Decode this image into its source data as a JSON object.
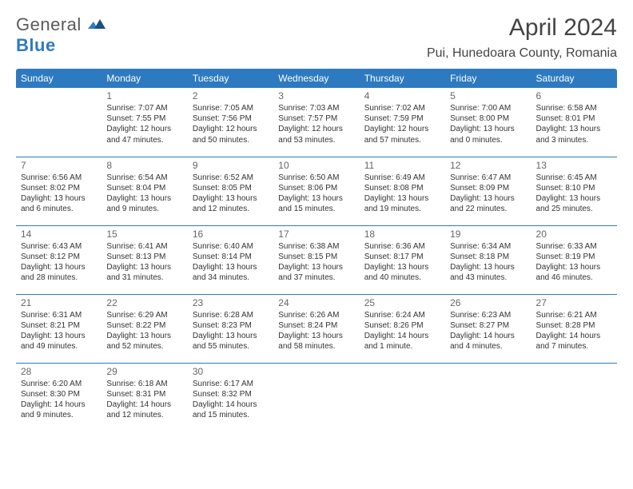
{
  "logo": {
    "general": "General",
    "blue": "Blue"
  },
  "header": {
    "month_title": "April 2024",
    "location": "Pui, Hunedoara County, Romania"
  },
  "colors": {
    "header_bg": "#2e7ac0",
    "header_text": "#ffffff",
    "divider": "#2e7ac0",
    "daynum": "#666666",
    "body_text": "#333333",
    "logo_gray": "#5a5a5a",
    "logo_blue": "#2e7ac0",
    "background": "#ffffff"
  },
  "typography": {
    "month_title_fontsize": 30,
    "location_fontsize": 16,
    "weekday_fontsize": 12,
    "daynum_fontsize": 12,
    "info_fontsize": 10
  },
  "weekdays": [
    "Sunday",
    "Monday",
    "Tuesday",
    "Wednesday",
    "Thursday",
    "Friday",
    "Saturday"
  ],
  "weeks": [
    [
      null,
      {
        "day": "1",
        "sunrise": "Sunrise: 7:07 AM",
        "sunset": "Sunset: 7:55 PM",
        "daylight1": "Daylight: 12 hours",
        "daylight2": "and 47 minutes."
      },
      {
        "day": "2",
        "sunrise": "Sunrise: 7:05 AM",
        "sunset": "Sunset: 7:56 PM",
        "daylight1": "Daylight: 12 hours",
        "daylight2": "and 50 minutes."
      },
      {
        "day": "3",
        "sunrise": "Sunrise: 7:03 AM",
        "sunset": "Sunset: 7:57 PM",
        "daylight1": "Daylight: 12 hours",
        "daylight2": "and 53 minutes."
      },
      {
        "day": "4",
        "sunrise": "Sunrise: 7:02 AM",
        "sunset": "Sunset: 7:59 PM",
        "daylight1": "Daylight: 12 hours",
        "daylight2": "and 57 minutes."
      },
      {
        "day": "5",
        "sunrise": "Sunrise: 7:00 AM",
        "sunset": "Sunset: 8:00 PM",
        "daylight1": "Daylight: 13 hours",
        "daylight2": "and 0 minutes."
      },
      {
        "day": "6",
        "sunrise": "Sunrise: 6:58 AM",
        "sunset": "Sunset: 8:01 PM",
        "daylight1": "Daylight: 13 hours",
        "daylight2": "and 3 minutes."
      }
    ],
    [
      {
        "day": "7",
        "sunrise": "Sunrise: 6:56 AM",
        "sunset": "Sunset: 8:02 PM",
        "daylight1": "Daylight: 13 hours",
        "daylight2": "and 6 minutes."
      },
      {
        "day": "8",
        "sunrise": "Sunrise: 6:54 AM",
        "sunset": "Sunset: 8:04 PM",
        "daylight1": "Daylight: 13 hours",
        "daylight2": "and 9 minutes."
      },
      {
        "day": "9",
        "sunrise": "Sunrise: 6:52 AM",
        "sunset": "Sunset: 8:05 PM",
        "daylight1": "Daylight: 13 hours",
        "daylight2": "and 12 minutes."
      },
      {
        "day": "10",
        "sunrise": "Sunrise: 6:50 AM",
        "sunset": "Sunset: 8:06 PM",
        "daylight1": "Daylight: 13 hours",
        "daylight2": "and 15 minutes."
      },
      {
        "day": "11",
        "sunrise": "Sunrise: 6:49 AM",
        "sunset": "Sunset: 8:08 PM",
        "daylight1": "Daylight: 13 hours",
        "daylight2": "and 19 minutes."
      },
      {
        "day": "12",
        "sunrise": "Sunrise: 6:47 AM",
        "sunset": "Sunset: 8:09 PM",
        "daylight1": "Daylight: 13 hours",
        "daylight2": "and 22 minutes."
      },
      {
        "day": "13",
        "sunrise": "Sunrise: 6:45 AM",
        "sunset": "Sunset: 8:10 PM",
        "daylight1": "Daylight: 13 hours",
        "daylight2": "and 25 minutes."
      }
    ],
    [
      {
        "day": "14",
        "sunrise": "Sunrise: 6:43 AM",
        "sunset": "Sunset: 8:12 PM",
        "daylight1": "Daylight: 13 hours",
        "daylight2": "and 28 minutes."
      },
      {
        "day": "15",
        "sunrise": "Sunrise: 6:41 AM",
        "sunset": "Sunset: 8:13 PM",
        "daylight1": "Daylight: 13 hours",
        "daylight2": "and 31 minutes."
      },
      {
        "day": "16",
        "sunrise": "Sunrise: 6:40 AM",
        "sunset": "Sunset: 8:14 PM",
        "daylight1": "Daylight: 13 hours",
        "daylight2": "and 34 minutes."
      },
      {
        "day": "17",
        "sunrise": "Sunrise: 6:38 AM",
        "sunset": "Sunset: 8:15 PM",
        "daylight1": "Daylight: 13 hours",
        "daylight2": "and 37 minutes."
      },
      {
        "day": "18",
        "sunrise": "Sunrise: 6:36 AM",
        "sunset": "Sunset: 8:17 PM",
        "daylight1": "Daylight: 13 hours",
        "daylight2": "and 40 minutes."
      },
      {
        "day": "19",
        "sunrise": "Sunrise: 6:34 AM",
        "sunset": "Sunset: 8:18 PM",
        "daylight1": "Daylight: 13 hours",
        "daylight2": "and 43 minutes."
      },
      {
        "day": "20",
        "sunrise": "Sunrise: 6:33 AM",
        "sunset": "Sunset: 8:19 PM",
        "daylight1": "Daylight: 13 hours",
        "daylight2": "and 46 minutes."
      }
    ],
    [
      {
        "day": "21",
        "sunrise": "Sunrise: 6:31 AM",
        "sunset": "Sunset: 8:21 PM",
        "daylight1": "Daylight: 13 hours",
        "daylight2": "and 49 minutes."
      },
      {
        "day": "22",
        "sunrise": "Sunrise: 6:29 AM",
        "sunset": "Sunset: 8:22 PM",
        "daylight1": "Daylight: 13 hours",
        "daylight2": "and 52 minutes."
      },
      {
        "day": "23",
        "sunrise": "Sunrise: 6:28 AM",
        "sunset": "Sunset: 8:23 PM",
        "daylight1": "Daylight: 13 hours",
        "daylight2": "and 55 minutes."
      },
      {
        "day": "24",
        "sunrise": "Sunrise: 6:26 AM",
        "sunset": "Sunset: 8:24 PM",
        "daylight1": "Daylight: 13 hours",
        "daylight2": "and 58 minutes."
      },
      {
        "day": "25",
        "sunrise": "Sunrise: 6:24 AM",
        "sunset": "Sunset: 8:26 PM",
        "daylight1": "Daylight: 14 hours",
        "daylight2": "and 1 minute."
      },
      {
        "day": "26",
        "sunrise": "Sunrise: 6:23 AM",
        "sunset": "Sunset: 8:27 PM",
        "daylight1": "Daylight: 14 hours",
        "daylight2": "and 4 minutes."
      },
      {
        "day": "27",
        "sunrise": "Sunrise: 6:21 AM",
        "sunset": "Sunset: 8:28 PM",
        "daylight1": "Daylight: 14 hours",
        "daylight2": "and 7 minutes."
      }
    ],
    [
      {
        "day": "28",
        "sunrise": "Sunrise: 6:20 AM",
        "sunset": "Sunset: 8:30 PM",
        "daylight1": "Daylight: 14 hours",
        "daylight2": "and 9 minutes."
      },
      {
        "day": "29",
        "sunrise": "Sunrise: 6:18 AM",
        "sunset": "Sunset: 8:31 PM",
        "daylight1": "Daylight: 14 hours",
        "daylight2": "and 12 minutes."
      },
      {
        "day": "30",
        "sunrise": "Sunrise: 6:17 AM",
        "sunset": "Sunset: 8:32 PM",
        "daylight1": "Daylight: 14 hours",
        "daylight2": "and 15 minutes."
      },
      null,
      null,
      null,
      null
    ]
  ]
}
